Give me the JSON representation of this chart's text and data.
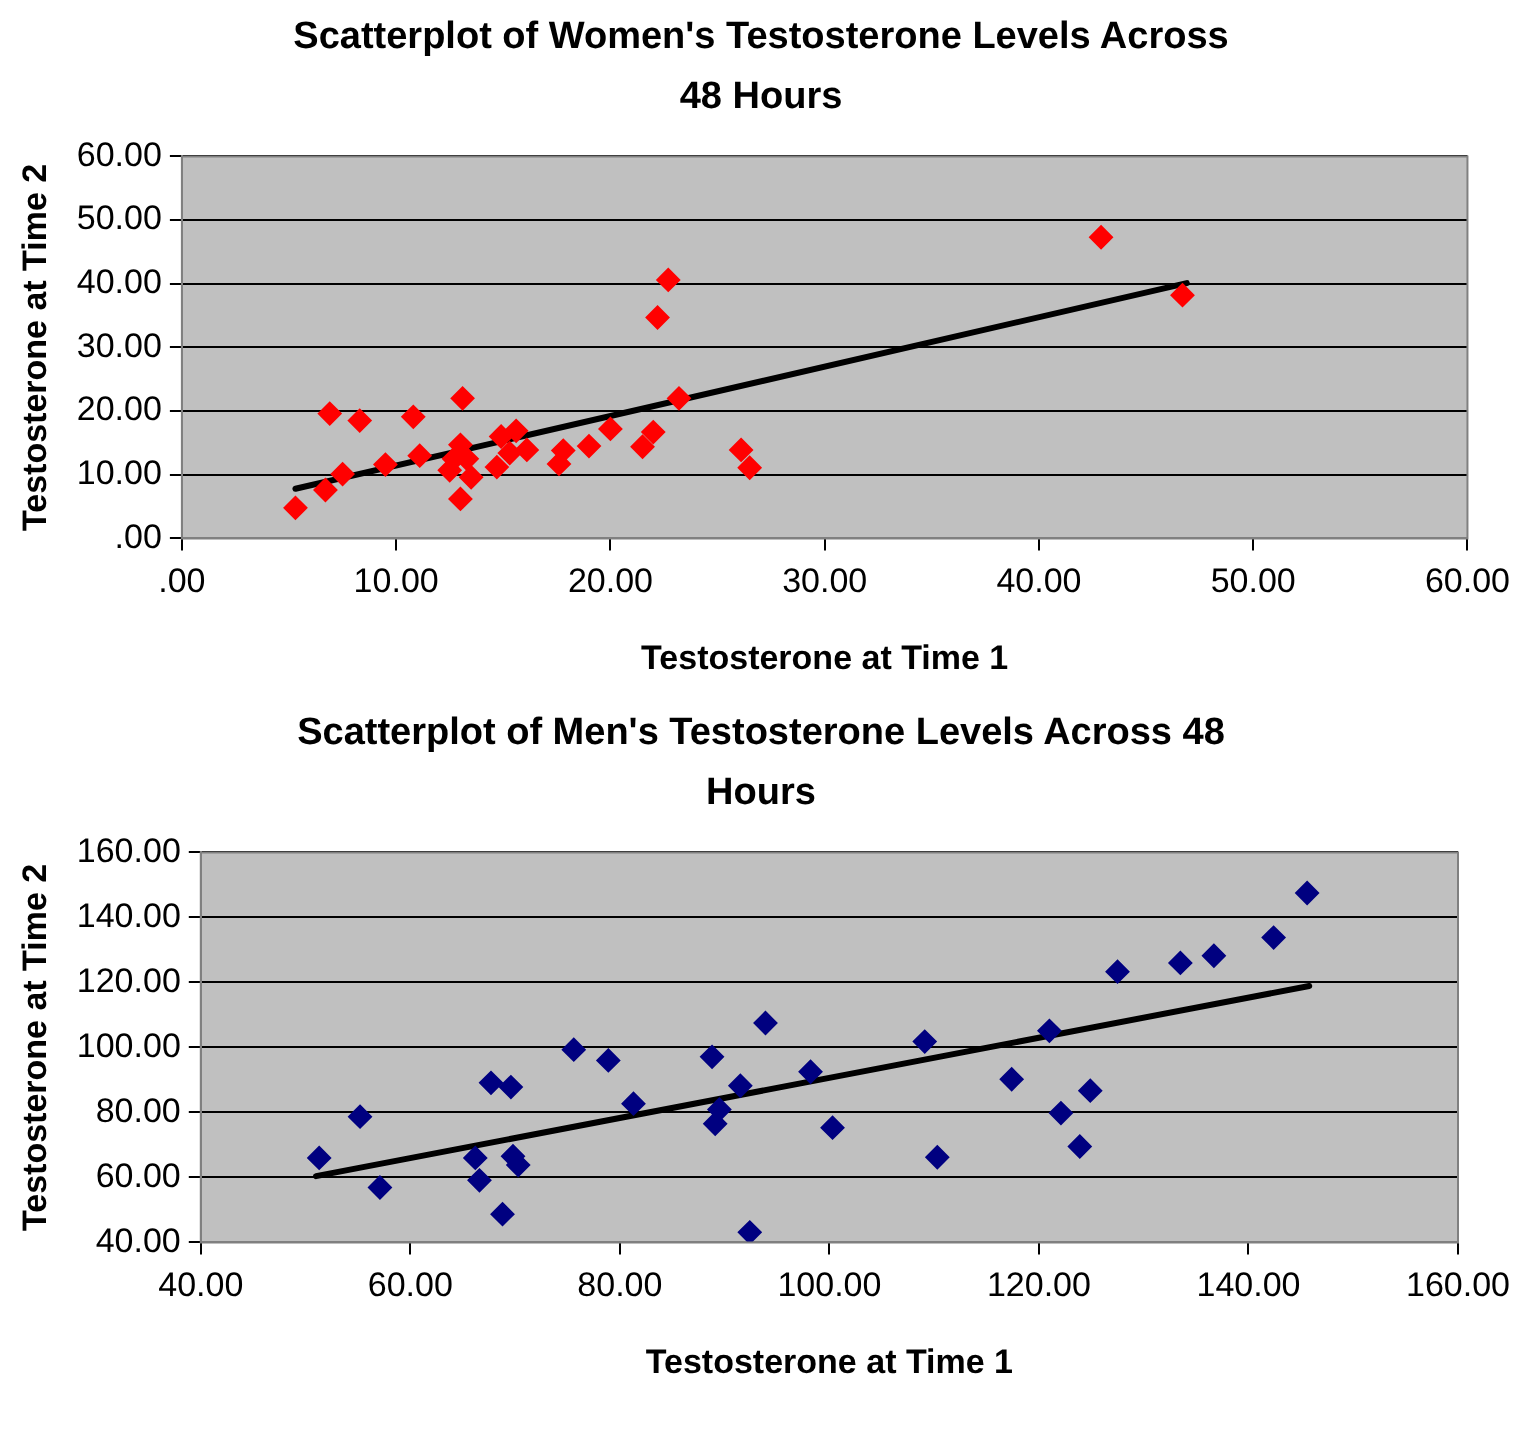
{
  "chart_data": [
    {
      "type": "scatter",
      "title": "Scatterplot of Women's Testosterone Levels Across 48 Hours",
      "xlabel": "Testosterone at Time 1",
      "ylabel": "Testosterone at Time 2",
      "xlim": [
        0,
        60
      ],
      "ylim": [
        0,
        60
      ],
      "xticks": [
        {
          "value": 0,
          "label": ".00"
        },
        {
          "value": 10,
          "label": "10.00"
        },
        {
          "value": 20,
          "label": "20.00"
        },
        {
          "value": 30,
          "label": "30.00"
        },
        {
          "value": 40,
          "label": "40.00"
        },
        {
          "value": 50,
          "label": "50.00"
        },
        {
          "value": 60,
          "label": "60.00"
        }
      ],
      "yticks": [
        {
          "value": 0,
          "label": ".00"
        },
        {
          "value": 10,
          "label": "10.00"
        },
        {
          "value": 20,
          "label": "20.00"
        },
        {
          "value": 30,
          "label": "30.00"
        },
        {
          "value": 40,
          "label": "40.00"
        },
        {
          "value": 50,
          "label": "50.00"
        },
        {
          "value": 60,
          "label": "60.00"
        }
      ],
      "grid": "y",
      "legend": false,
      "series": [
        {
          "type": "scatter",
          "marker": "diamond",
          "color": "#ff0000",
          "x": [
            5.3,
            6.7,
            6.9,
            7.5,
            8.3,
            9.5,
            10.8,
            11.1,
            12.5,
            12.7,
            13,
            13.1,
            13,
            13.3,
            13.5,
            14.7,
            14.9,
            15.3,
            15.6,
            16.1,
            17.6,
            17.8,
            19,
            20,
            21.5,
            22,
            22.2,
            22.7,
            23.2,
            26.1,
            26.5,
            42.9,
            46.7
          ],
          "values": [
            4.8,
            7.6,
            19.6,
            10.1,
            18.5,
            11.6,
            19.1,
            13,
            10.7,
            12.5,
            14.7,
            22,
            6.2,
            12.5,
            9.6,
            11.2,
            16,
            13.4,
            16.9,
            13.9,
            11.7,
            13.8,
            14.5,
            17.2,
            14.4,
            16.7,
            34.7,
            40.6,
            22,
            13.9,
            11.1,
            47.3,
            38.2
          ]
        },
        {
          "type": "line",
          "marker": "none",
          "line_style": "solid",
          "color": "#000000",
          "x": [
            5.3,
            46.9
          ],
          "values": [
            7.8,
            40.1
          ]
        }
      ]
    },
    {
      "type": "scatter",
      "title": "Scatterplot of Men's Testosterone Levels Across 48 Hours",
      "xlabel": "Testosterone at Time 1",
      "ylabel": "Testosterone at Time 2",
      "xlim": [
        40,
        160
      ],
      "ylim": [
        40,
        160
      ],
      "xticks": [
        {
          "value": 40,
          "label": "40.00"
        },
        {
          "value": 60,
          "label": "60.00"
        },
        {
          "value": 80,
          "label": "80.00"
        },
        {
          "value": 100,
          "label": "100.00"
        },
        {
          "value": 120,
          "label": "120.00"
        },
        {
          "value": 140,
          "label": "140.00"
        },
        {
          "value": 160,
          "label": "160.00"
        }
      ],
      "yticks": [
        {
          "value": 40,
          "label": "40.00"
        },
        {
          "value": 60,
          "label": "60.00"
        },
        {
          "value": 80,
          "label": "80.00"
        },
        {
          "value": 100,
          "label": "100.00"
        },
        {
          "value": 120,
          "label": "120.00"
        },
        {
          "value": 140,
          "label": "140.00"
        },
        {
          "value": 160,
          "label": "160.00"
        }
      ],
      "grid": "y",
      "legend": false,
      "series": [
        {
          "type": "scatter",
          "marker": "diamond",
          "color": "#000080",
          "x": [
            51.3,
            55.2,
            57.1,
            66.2,
            66.6,
            67.7,
            68.8,
            69.6,
            69.8,
            70.3,
            75.6,
            78.9,
            81.3,
            88.8,
            89.5,
            89.1,
            91.5,
            93.9,
            92.4,
            98.2,
            100.3,
            109.1,
            110.3,
            117.4,
            121,
            122.1,
            123.9,
            124.9,
            127.5,
            133.5,
            136.7,
            142.4,
            145.6
          ],
          "values": [
            66,
            78.7,
            56.9,
            66,
            59.1,
            89.1,
            48.7,
            87.8,
            66.5,
            63.8,
            99.3,
            96,
            82.7,
            97.1,
            80.9,
            76.5,
            88.2,
            107.5,
            43.1,
            92.5,
            75.3,
            101.8,
            66.2,
            90.2,
            105.1,
            79.8,
            69.5,
            86.7,
            123.3,
            126,
            128.2,
            133.8,
            147.5
          ]
        },
        {
          "type": "line",
          "marker": "none",
          "line_style": "solid",
          "color": "#000000",
          "x": [
            51,
            145.8
          ],
          "values": [
            60.4,
            118.9
          ]
        }
      ]
    }
  ]
}
